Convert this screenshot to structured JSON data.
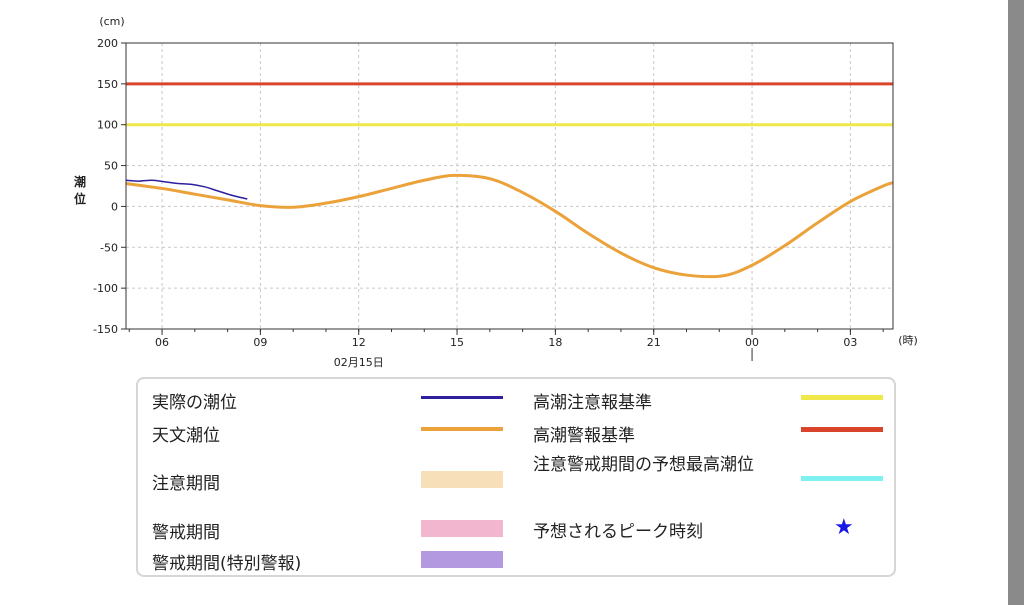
{
  "chart_data": {
    "type": "line",
    "y_unit": "(cm)",
    "x_unit": "(時)",
    "ylabel": "潮位",
    "ylim": [
      -150,
      200
    ],
    "yticks": [
      200,
      150,
      100,
      50,
      0,
      -50,
      -100,
      -150
    ],
    "x_range_hours": [
      4.9,
      28.3
    ],
    "xticks": [
      {
        "hour": 6,
        "label": "06"
      },
      {
        "hour": 9,
        "label": "09"
      },
      {
        "hour": 12,
        "label": "12"
      },
      {
        "hour": 15,
        "label": "15"
      },
      {
        "hour": 18,
        "label": "18"
      },
      {
        "hour": 21,
        "label": "21"
      },
      {
        "hour": 24,
        "label": "00"
      },
      {
        "hour": 27,
        "label": "03"
      }
    ],
    "date_label": {
      "hour": 12,
      "text": "02月15日"
    },
    "day_boundary_hour": 24,
    "grid": true,
    "thresholds": [
      {
        "name": "高潮注意報基準",
        "value": 100,
        "color": "#f0e84a"
      },
      {
        "name": "高潮警報基準",
        "value": 150,
        "color": "#d9452b"
      }
    ],
    "series": [
      {
        "name": "天文潮位",
        "color": "#eba23a",
        "x": [
          4.9,
          6,
          7,
          8,
          9,
          10,
          11,
          12,
          13,
          14,
          14.9,
          16,
          17,
          18,
          19,
          20,
          21,
          22,
          23.1,
          24,
          25,
          26,
          27,
          28,
          28.3
        ],
        "y": [
          28,
          22,
          15,
          8,
          1,
          -1,
          4,
          12,
          22,
          32,
          38,
          34,
          17,
          -6,
          -33,
          -57,
          -75,
          -84,
          -85,
          -72,
          -48,
          -20,
          6,
          25,
          29
        ]
      },
      {
        "name": "実際の潮位",
        "color": "#2d1f9e",
        "x": [
          4.9,
          5.3,
          5.7,
          6.1,
          6.5,
          6.9,
          7.3,
          7.7,
          8.1,
          8.6
        ],
        "y": [
          32,
          31,
          32,
          30,
          28,
          27,
          24,
          19,
          14,
          9
        ]
      }
    ]
  },
  "legend": {
    "actual": "実際の潮位",
    "astro": "天文潮位",
    "caution_period": "注意期間",
    "warning_period": "警戒期間",
    "warning_special": "警戒期間(特別警報)",
    "advisory_std": "高潮注意報基準",
    "warning_std": "高潮警報基準",
    "peak_forecast": "注意警戒期間の予想最高潮位",
    "peak_time": "予想されるピーク時刻",
    "colors": {
      "actual": "#2d1f9e",
      "astro": "#eba23a",
      "caution_period": "#f7dfba",
      "warning_period": "#f3b6cf",
      "warning_special": "#b39ae0",
      "advisory_std": "#f0e84a",
      "warning_std": "#d9452b",
      "peak_forecast": "#7ef0f0",
      "peak_time": "#1a1ae6"
    },
    "star_icon": "star-icon"
  }
}
